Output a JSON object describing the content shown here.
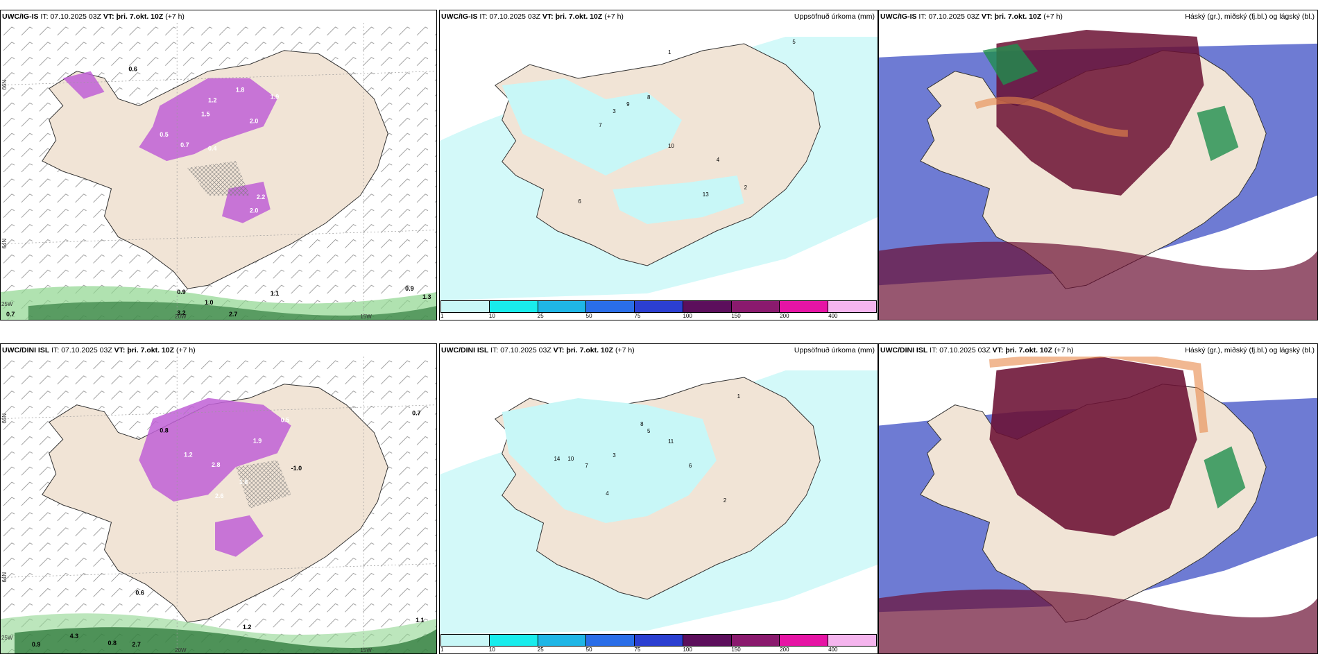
{
  "rows": [
    {
      "model": "UWC/IG-IS",
      "it_label": "IT:",
      "it_value": "07.10.2025 03Z",
      "vt_label": "VT:",
      "vt_value": "þri. 7.okt. 10Z",
      "lead": "(+7 h)",
      "precip_title": "Uppsöfnuð úrkoma (mm)",
      "cloud_title": "Háský (gr.), miðský (fj.bl.) og lágský (bl.)",
      "left_labels": [
        "0.6",
        "1.2",
        "2.0",
        "1.8",
        "1.9",
        "0.7",
        "0.4",
        "0.5",
        "1.5",
        "2.2",
        "2.0",
        "0.9",
        "1.0",
        "1.1",
        "0.9",
        "1.3",
        "0.7",
        "3.2",
        "2.7"
      ],
      "precip_labels": [
        "1",
        "5",
        "3",
        "9",
        "8",
        "7",
        "10",
        "4",
        "2",
        "6",
        "13"
      ]
    },
    {
      "model": "UWC/DINI ISL",
      "it_label": "IT:",
      "it_value": "07.10.2025 03Z",
      "vt_label": "VT:",
      "vt_value": "þri. 7.okt. 10Z",
      "lead": "(+7 h)",
      "precip_title": "Uppsöfnuð úrkoma (mm)",
      "cloud_title": "Háský (gr.), miðský (fj.bl.) og lágský (bl.)",
      "left_labels": [
        "0.8",
        "1.2",
        "2.8",
        "1.9",
        "0.5",
        "-1.0",
        "2.6",
        "1.6",
        "0.7",
        "0.6",
        "1.2",
        "2.7",
        "0.9",
        "1.1",
        "4.3",
        "0.8"
      ],
      "precip_labels": [
        "1",
        "5",
        "11",
        "3",
        "7",
        "14",
        "10",
        "6",
        "8",
        "4",
        "2"
      ]
    }
  ],
  "axis_labels": {
    "lat_top": "66N",
    "lat_bottom": "64N",
    "lon_left": "25W",
    "lon_mid": "20W",
    "lon_right": "15W"
  },
  "colorbar": {
    "ticks": [
      "1",
      "10",
      "25",
      "50",
      "75",
      "100",
      "150",
      "200",
      "400"
    ],
    "colors": [
      "#c8f7f7",
      "#19ecec",
      "#1fb6e6",
      "#2a6ee8",
      "#2b3fd1",
      "#5c0f5c",
      "#8a1a6e",
      "#e614a5",
      "#f5b5ee"
    ]
  },
  "colors": {
    "land": "#f1e4d6",
    "precip_light": "#c8f7f7",
    "snow_magenta": "#c060d6",
    "rain_green": "#8fd68f",
    "cloud_high": "#6b1033",
    "cloud_mid": "#3e4fc4",
    "cloud_low": "#1f8f4e"
  }
}
